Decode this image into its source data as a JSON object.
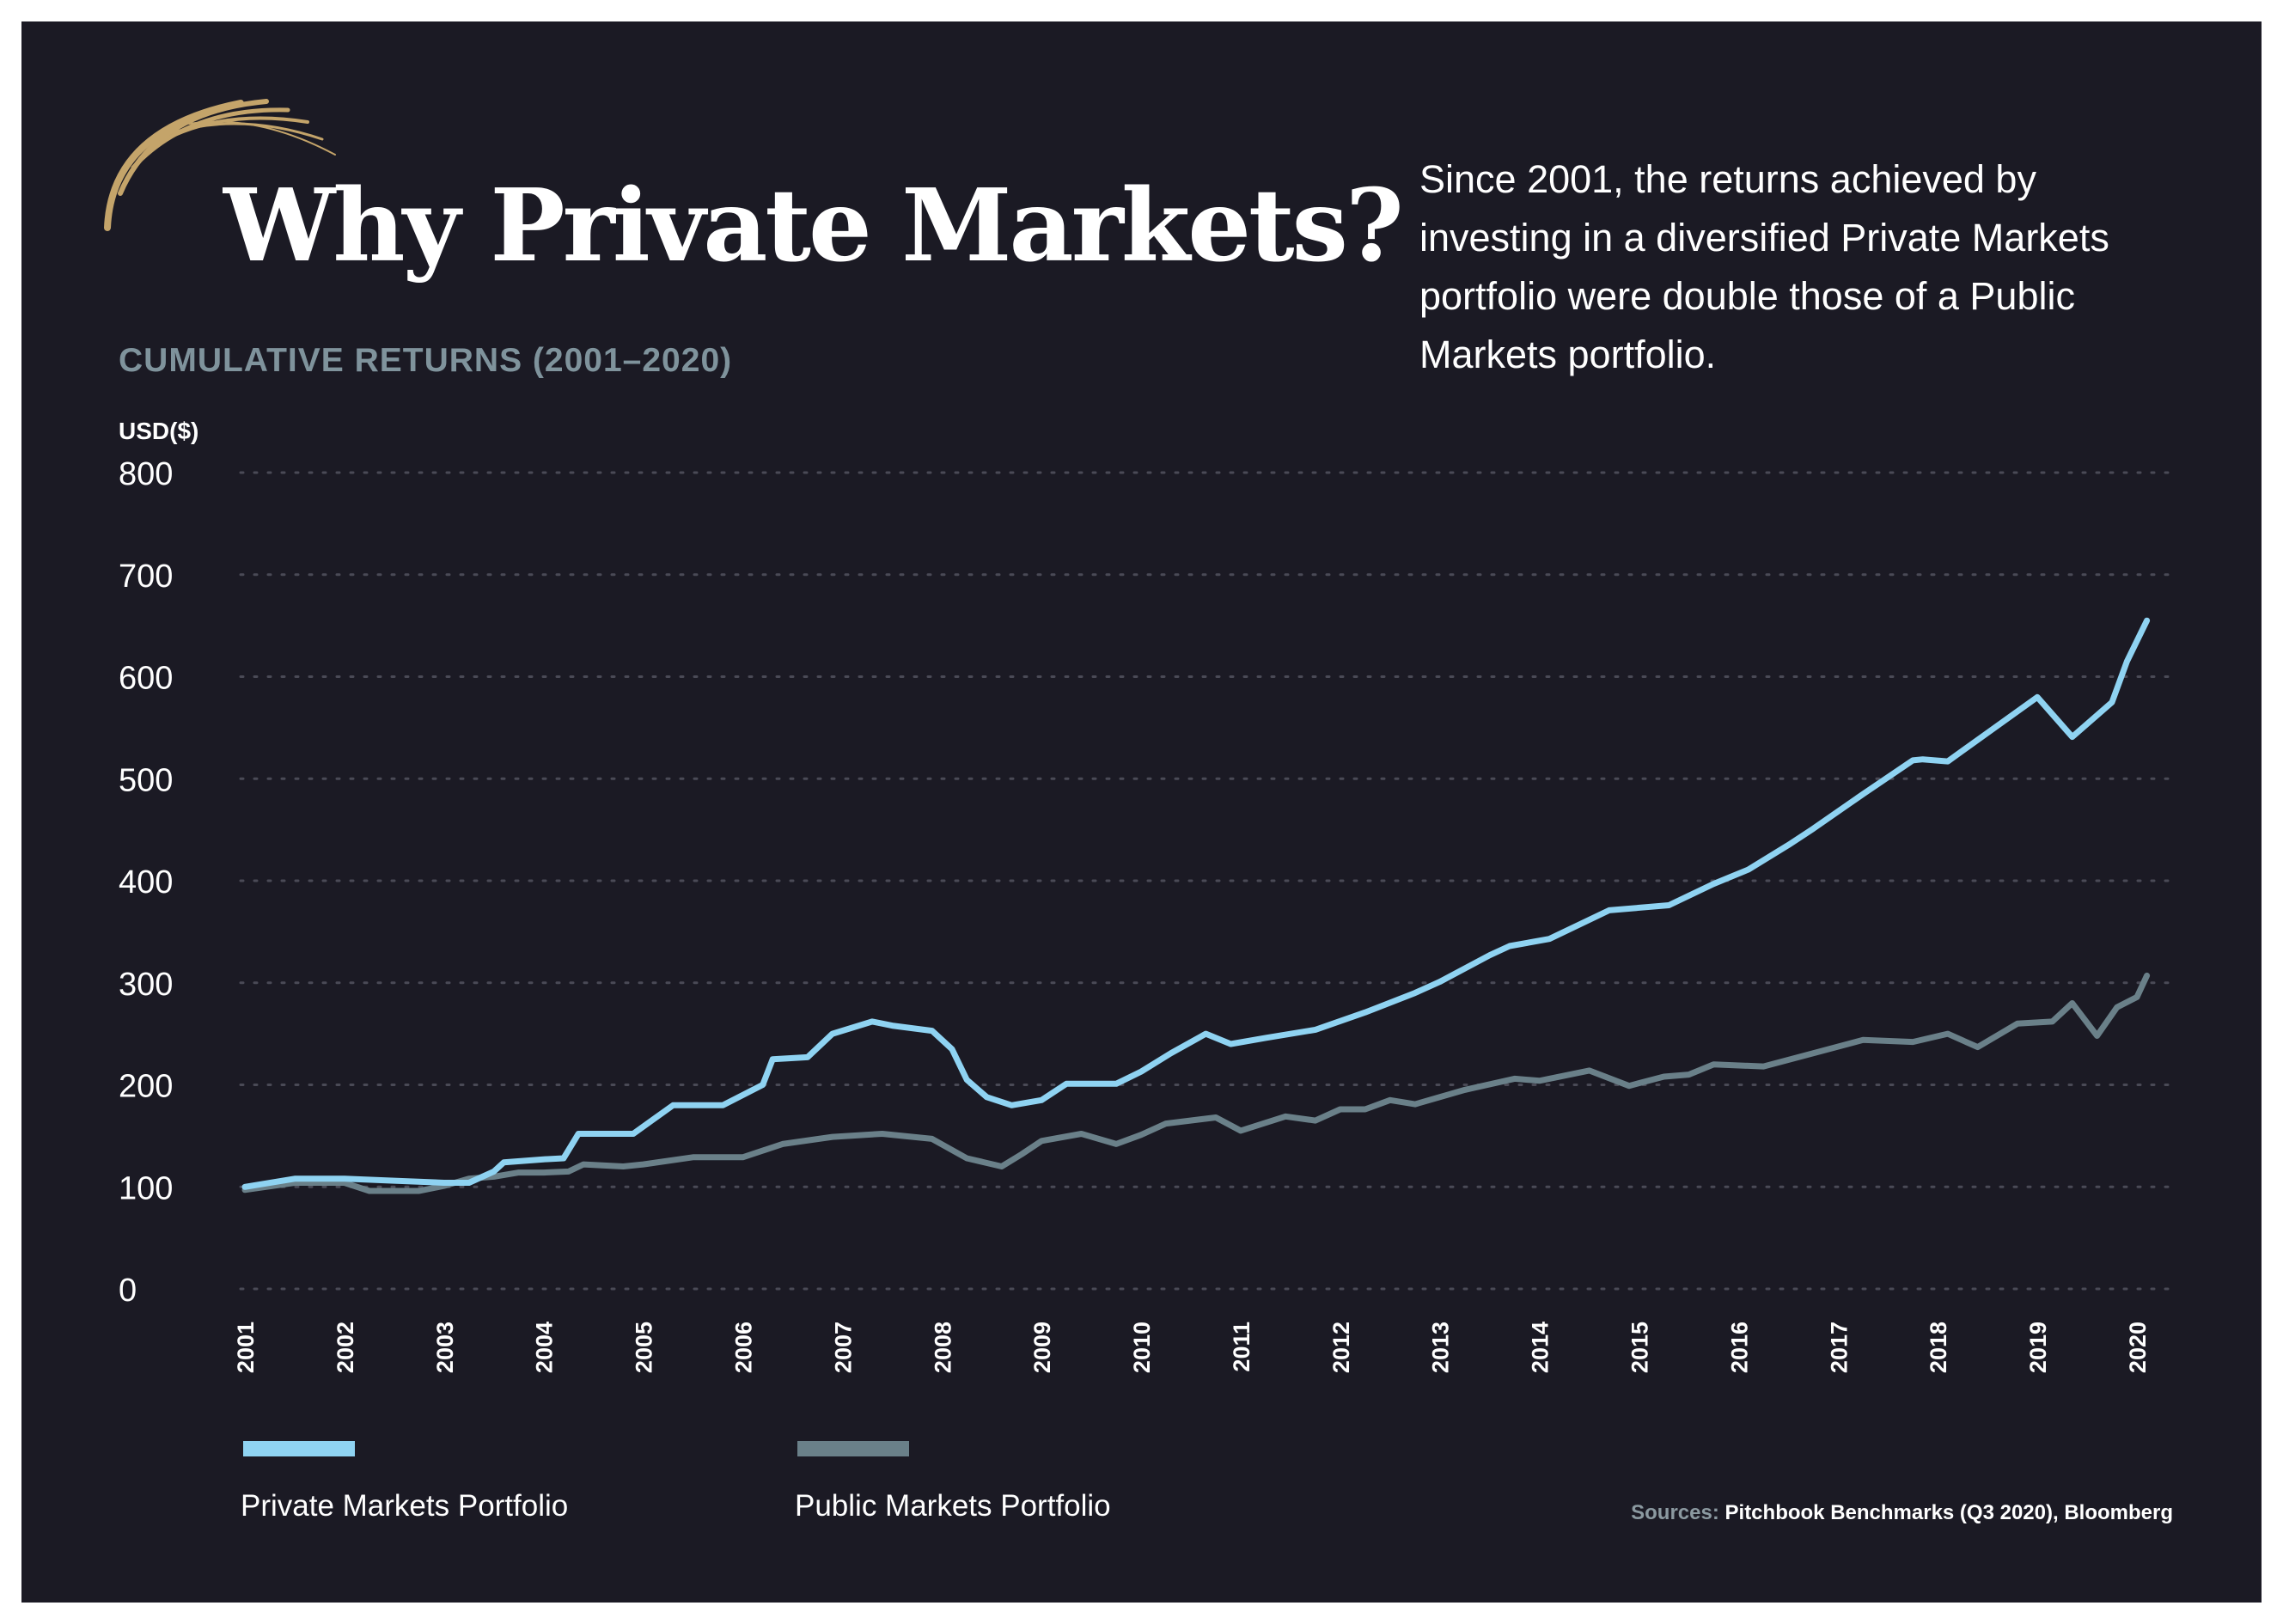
{
  "title": "Why Private Markets?",
  "subtitle": "CUMULATIVE RETURNS (2001–2020)",
  "intro": "Since 2001, the returns achieved by investing in a diversified Private Markets portfolio were double those of a Public Markets portfolio.",
  "source_prefix": "Sources:",
  "source_text": "Pitchbook Benchmarks (Q3 2020), Bloomberg",
  "logo_icon": "gold-arc-logo-icon",
  "colors": {
    "background": "#1b1a24",
    "private": "#8fd3f2",
    "public": "#6a8089",
    "gold": "#c4a46a",
    "grid": "#4a4a56"
  },
  "chart_data": {
    "type": "line",
    "title": "CUMULATIVE RETURNS (2001–2020)",
    "ylabel": "USD($)",
    "xlabel": "",
    "ylim": [
      0,
      800
    ],
    "xlim": [
      2001,
      2020
    ],
    "yticks": [
      "800",
      "700",
      "600",
      "500",
      "400",
      "300",
      "200",
      "100",
      "0"
    ],
    "ytick_values": [
      800,
      700,
      600,
      500,
      400,
      300,
      200,
      100,
      0
    ],
    "xticks": [
      "2001",
      "2002",
      "2003",
      "2004",
      "2005",
      "2006",
      "2007",
      "2008",
      "2009",
      "2010",
      "2011",
      "2012",
      "2013",
      "2014",
      "2015",
      "2016",
      "2017",
      "2018",
      "2019",
      "2020"
    ],
    "grid": true,
    "grid_style": "dotted horizontal",
    "legend_position": "bottom",
    "series": [
      {
        "name": "Private Markets Portfolio",
        "color": "#8fd3f2",
        "points": [
          [
            2001.0,
            100
          ],
          [
            2001.5,
            108
          ],
          [
            2002.0,
            108
          ],
          [
            2002.5,
            106
          ],
          [
            2003.0,
            104
          ],
          [
            2003.25,
            104
          ],
          [
            2003.5,
            115
          ],
          [
            2003.6,
            124
          ],
          [
            2004.0,
            127
          ],
          [
            2004.2,
            128
          ],
          [
            2004.35,
            152
          ],
          [
            2004.6,
            152
          ],
          [
            2004.9,
            152
          ],
          [
            2005.3,
            180
          ],
          [
            2005.6,
            180
          ],
          [
            2005.8,
            180
          ],
          [
            2006.2,
            200
          ],
          [
            2006.3,
            225
          ],
          [
            2006.65,
            227
          ],
          [
            2006.9,
            250
          ],
          [
            2007.3,
            262
          ],
          [
            2007.5,
            258
          ],
          [
            2007.9,
            253
          ],
          [
            2008.1,
            235
          ],
          [
            2008.25,
            205
          ],
          [
            2008.45,
            188
          ],
          [
            2008.7,
            180
          ],
          [
            2009.0,
            185
          ],
          [
            2009.25,
            201
          ],
          [
            2009.5,
            201
          ],
          [
            2009.75,
            201
          ],
          [
            2010.0,
            213
          ],
          [
            2010.3,
            231
          ],
          [
            2010.65,
            250
          ],
          [
            2010.9,
            240
          ],
          [
            2011.25,
            246
          ],
          [
            2011.75,
            254
          ],
          [
            2012.25,
            271
          ],
          [
            2012.75,
            290
          ],
          [
            2013.0,
            301
          ],
          [
            2013.5,
            327
          ],
          [
            2013.7,
            336
          ],
          [
            2014.1,
            343
          ],
          [
            2014.7,
            371
          ],
          [
            2015.3,
            376
          ],
          [
            2015.75,
            397
          ],
          [
            2016.1,
            411
          ],
          [
            2016.5,
            435
          ],
          [
            2016.75,
            451
          ],
          [
            2017.25,
            485
          ],
          [
            2017.75,
            518
          ],
          [
            2017.85,
            519
          ],
          [
            2018.1,
            517
          ],
          [
            2018.5,
            545
          ],
          [
            2019.0,
            580
          ],
          [
            2019.35,
            541
          ],
          [
            2019.75,
            575
          ],
          [
            2019.9,
            615
          ],
          [
            2020.1,
            655
          ]
        ]
      },
      {
        "name": "Public Markets Portfolio",
        "color": "#6a8089",
        "points": [
          [
            2001.0,
            97
          ],
          [
            2001.5,
            104
          ],
          [
            2002.0,
            104
          ],
          [
            2002.25,
            96
          ],
          [
            2002.75,
            96
          ],
          [
            2003.0,
            101
          ],
          [
            2003.25,
            108
          ],
          [
            2003.5,
            110
          ],
          [
            2003.75,
            114
          ],
          [
            2004.0,
            114
          ],
          [
            2004.25,
            115
          ],
          [
            2004.4,
            122
          ],
          [
            2004.8,
            120
          ],
          [
            2005.0,
            122
          ],
          [
            2005.5,
            129
          ],
          [
            2005.75,
            129
          ],
          [
            2006.0,
            129
          ],
          [
            2006.4,
            142
          ],
          [
            2006.9,
            149
          ],
          [
            2007.4,
            152
          ],
          [
            2007.9,
            147
          ],
          [
            2008.25,
            128
          ],
          [
            2008.6,
            120
          ],
          [
            2008.8,
            132
          ],
          [
            2009.0,
            145
          ],
          [
            2009.4,
            152
          ],
          [
            2009.75,
            142
          ],
          [
            2010.0,
            151
          ],
          [
            2010.25,
            162
          ],
          [
            2010.75,
            168
          ],
          [
            2011.0,
            155
          ],
          [
            2011.45,
            169
          ],
          [
            2011.75,
            165
          ],
          [
            2012.0,
            176
          ],
          [
            2012.25,
            176
          ],
          [
            2012.5,
            185
          ],
          [
            2012.75,
            181
          ],
          [
            2013.0,
            188
          ],
          [
            2013.25,
            195
          ],
          [
            2013.75,
            206
          ],
          [
            2014.0,
            204
          ],
          [
            2014.5,
            214
          ],
          [
            2014.9,
            199
          ],
          [
            2015.25,
            208
          ],
          [
            2015.5,
            210
          ],
          [
            2015.75,
            220
          ],
          [
            2016.25,
            218
          ],
          [
            2016.75,
            231
          ],
          [
            2017.25,
            244
          ],
          [
            2017.75,
            242
          ],
          [
            2018.1,
            250
          ],
          [
            2018.4,
            237
          ],
          [
            2018.8,
            260
          ],
          [
            2019.15,
            262
          ],
          [
            2019.35,
            280
          ],
          [
            2019.6,
            248
          ],
          [
            2019.8,
            276
          ],
          [
            2020.0,
            286
          ],
          [
            2020.1,
            307
          ]
        ]
      }
    ]
  }
}
